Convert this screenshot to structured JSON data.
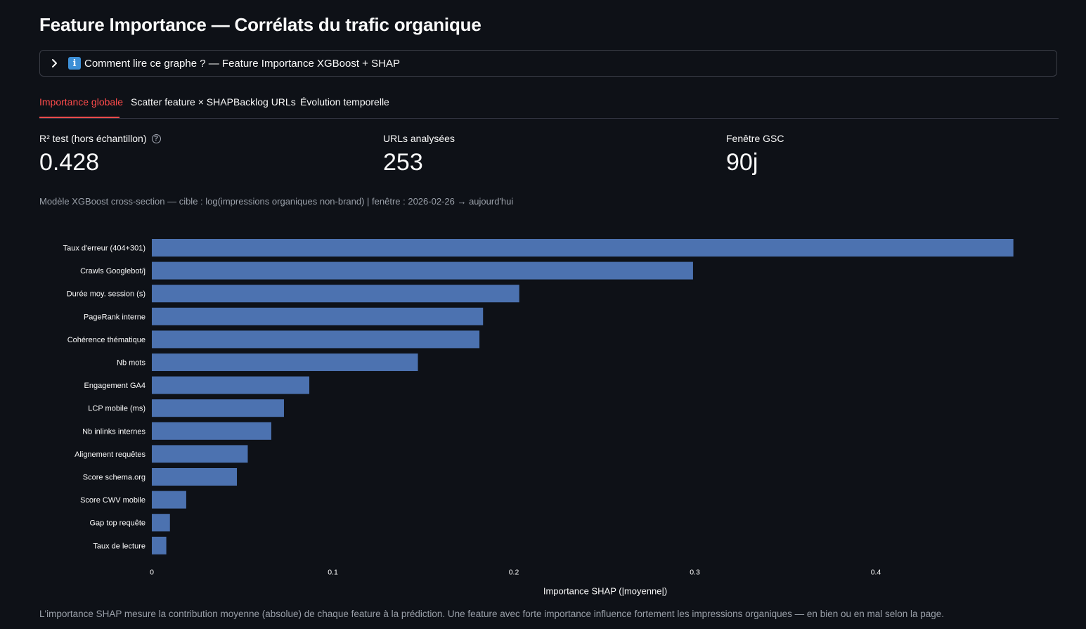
{
  "page": {
    "title": "Feature Importance — Corrélats du trafic organique"
  },
  "expander": {
    "icon": "info-icon",
    "label": "Comment lire ce graphe ? — Feature Importance XGBoost + SHAP"
  },
  "tabs": [
    {
      "label": "Importance globale",
      "active": true
    },
    {
      "label": "Scatter feature × SHAP",
      "active": false
    },
    {
      "label": "Backlog URLs",
      "active": false
    },
    {
      "label": "Évolution temporelle",
      "active": false
    }
  ],
  "metrics": [
    {
      "label": "R² test (hors échantillon)",
      "value": "0.428",
      "help": true
    },
    {
      "label": "URLs analysées",
      "value": "253",
      "help": false
    },
    {
      "label": "Fenêtre GSC",
      "value": "90j",
      "help": false
    }
  ],
  "caption": "Modèle XGBoost cross-section — cible : log(impressions organiques non-brand) | fenêtre : 2026-02-26 → aujourd'hui",
  "chart_data": {
    "type": "bar",
    "orientation": "horizontal",
    "categories": [
      "Taux d'erreur (404+301)",
      "Crawls Googlebot/j",
      "Durée moy. session (s)",
      "PageRank interne",
      "Cohérence thématique",
      "Nb mots",
      "Engagement GA4",
      "LCP mobile (ms)",
      "Nb inlinks internes",
      "Alignement requêtes",
      "Score schema.org",
      "Score CWV mobile",
      "Gap top requête",
      "Taux de lecture"
    ],
    "values": [
      0.476,
      0.299,
      0.203,
      0.183,
      0.181,
      0.147,
      0.087,
      0.073,
      0.066,
      0.053,
      0.047,
      0.019,
      0.01,
      0.008
    ],
    "xlabel": "Importance SHAP (|moyenne|)",
    "ylabel": "",
    "xticks": [
      "0",
      "0.1",
      "0.2",
      "0.3",
      "0.4"
    ],
    "xlim": [
      0,
      0.48
    ],
    "grid": false,
    "bar_color": "#4c72b0"
  },
  "footer": "L'importance SHAP mesure la contribution moyenne (absolue) de chaque feature à la prédiction. Une feature avec forte importance influence fortement les impressions organiques — en bien ou en mal selon la page."
}
